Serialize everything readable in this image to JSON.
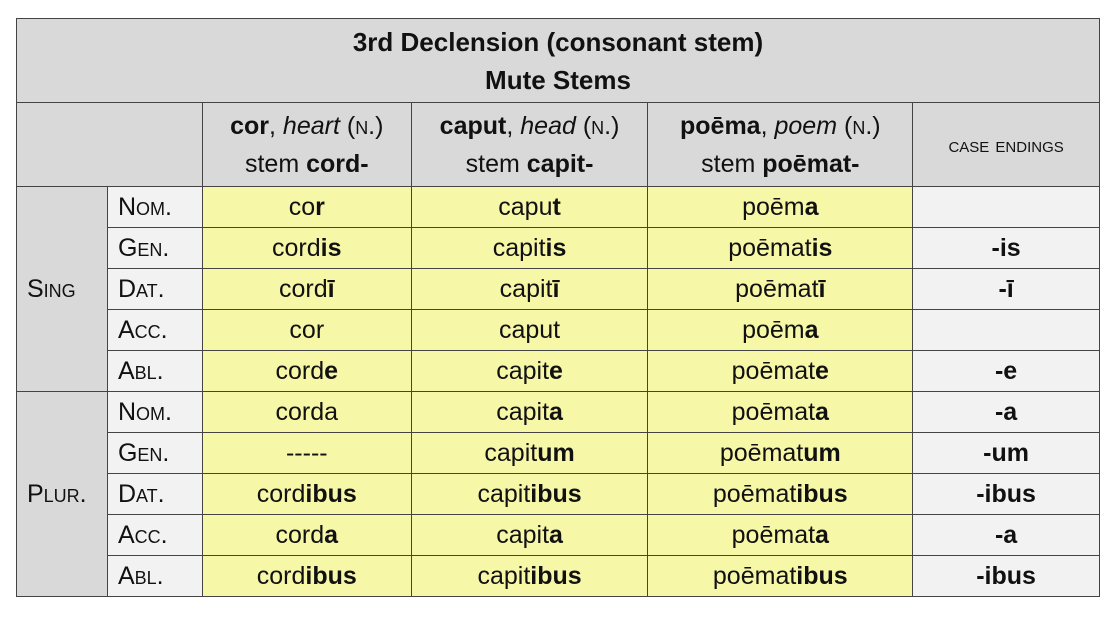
{
  "title": {
    "line1": "3rd Declension (consonant stem)",
    "line2": "Mute Stems"
  },
  "columns": [
    {
      "lemma": "cor",
      "gloss": "heart",
      "gender": "n.",
      "stem_label": "stem",
      "stem": "cord-"
    },
    {
      "lemma": "caput",
      "gloss": "head",
      "gender": "n.",
      "stem_label": "stem",
      "stem": "capit-"
    },
    {
      "lemma": "poēma",
      "gloss": "poem",
      "gender": "n.",
      "stem_label": "stem",
      "stem": "poēmat-"
    }
  ],
  "endings_header": "case endings",
  "groups": [
    {
      "label": "Sing",
      "rows": [
        {
          "case": "Nom.",
          "forms": [
            {
              "s": "co",
              "e": "r"
            },
            {
              "s": "capu",
              "e": "t"
            },
            {
              "s": "poēm",
              "e": "a"
            }
          ],
          "ending": ""
        },
        {
          "case": "Gen.",
          "forms": [
            {
              "s": "cord",
              "e": "is"
            },
            {
              "s": "capit",
              "e": "is"
            },
            {
              "s": "poēmat",
              "e": "is"
            }
          ],
          "ending": "-is"
        },
        {
          "case": "Dat.",
          "forms": [
            {
              "s": "cord",
              "e": "ī"
            },
            {
              "s": "capit",
              "e": "ī"
            },
            {
              "s": "poēmat",
              "e": "ī"
            }
          ],
          "ending": "-ī"
        },
        {
          "case": "Acc.",
          "forms": [
            {
              "s": "cor",
              "e": ""
            },
            {
              "s": "caput",
              "e": ""
            },
            {
              "s": "poēm",
              "e": "a"
            }
          ],
          "ending": ""
        },
        {
          "case": "Abl.",
          "forms": [
            {
              "s": "cord",
              "e": "e"
            },
            {
              "s": "capit",
              "e": "e"
            },
            {
              "s": "poēmat",
              "e": "e"
            }
          ],
          "ending": "-e"
        }
      ]
    },
    {
      "label": "Plur.",
      "rows": [
        {
          "case": "Nom.",
          "forms": [
            {
              "s": "corda",
              "e": ""
            },
            {
              "s": "capit",
              "e": "a"
            },
            {
              "s": "poēmat",
              "e": "a"
            }
          ],
          "ending": "-a"
        },
        {
          "case": "Gen.",
          "forms": [
            {
              "s": "-----",
              "e": ""
            },
            {
              "s": "capit",
              "e": "um"
            },
            {
              "s": "poēmat",
              "e": "um"
            }
          ],
          "ending": "-um"
        },
        {
          "case": "Dat.",
          "forms": [
            {
              "s": "cord",
              "e": "ibus"
            },
            {
              "s": "capit",
              "e": "ibus"
            },
            {
              "s": "poēmat",
              "e": "ibus"
            }
          ],
          "ending": "-ibus"
        },
        {
          "case": "Acc.",
          "forms": [
            {
              "s": "cord",
              "e": "a"
            },
            {
              "s": "capit",
              "e": "a"
            },
            {
              "s": "poēmat",
              "e": "a"
            }
          ],
          "ending": "-a"
        },
        {
          "case": "Abl.",
          "forms": [
            {
              "s": "cord",
              "e": "ibus"
            },
            {
              "s": "capit",
              "e": "ibus"
            },
            {
              "s": "poēmat",
              "e": "ibus"
            }
          ],
          "ending": "-ibus"
        }
      ]
    }
  ],
  "colors": {
    "header": "#d9d9d9",
    "forms": "#f7f7a8",
    "endings": "#f2f2f2"
  }
}
